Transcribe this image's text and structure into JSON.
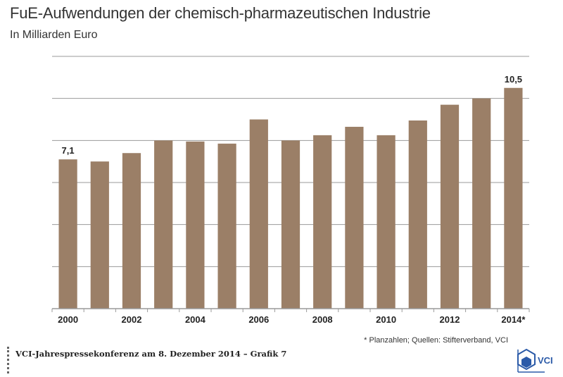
{
  "title": "FuE-Aufwendungen der chemisch-pharmazeutischen Industrie",
  "subtitle": "In Milliarden Euro",
  "footnote": "* Planzahlen; Quellen: Stifterverband, VCI",
  "footer": "VCI-Jahrespressekonferenz am 8. Dezember 2014 – Grafik 7",
  "logo_text": "VCI",
  "colors": {
    "bar": "#9b7f67",
    "grid": "#9a9a9a",
    "axis": "#9a9a9a",
    "logo": "#2b5aa8"
  },
  "chart_data": {
    "type": "bar",
    "title": "FuE-Aufwendungen der chemisch-pharmazeutischen Industrie",
    "subtitle": "In Milliarden Euro",
    "categories": [
      "2000",
      "2001",
      "2002",
      "2003",
      "2004",
      "2005",
      "2006",
      "2007",
      "2008",
      "2009",
      "2010",
      "2011",
      "2012",
      "2013",
      "2014"
    ],
    "tick_labels": [
      "2000",
      "",
      "2002",
      "",
      "2004",
      "",
      "2006",
      "",
      "2008",
      "",
      "2010",
      "",
      "2012",
      "",
      "2014*"
    ],
    "values": [
      7.1,
      7.0,
      7.4,
      8.0,
      7.95,
      7.85,
      9.0,
      8.0,
      8.25,
      8.65,
      8.25,
      8.95,
      9.7,
      10.0,
      10.5
    ],
    "data_labels": [
      {
        "index": 0,
        "text": "7,1"
      },
      {
        "index": 14,
        "text": "10,5"
      }
    ],
    "ylim": [
      0,
      12
    ],
    "y_tick_step": 2,
    "y_tick_labels_shown": false,
    "grid": true,
    "xlabel": "",
    "ylabel": ""
  }
}
